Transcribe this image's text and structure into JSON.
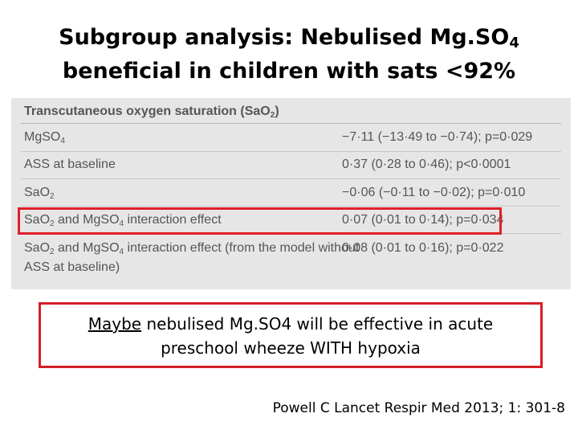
{
  "slide": {
    "title_line1_main": "Subgroup analysis: Nebulised Mg.SO",
    "title_line1_sub": "4",
    "title_line2": "beneficial in children with sats <92%"
  },
  "table": {
    "header_main": "Transcutaneous oxygen saturation (SaO",
    "header_sub": "2",
    "header_end": ")",
    "rows": [
      {
        "label_a": "MgSO",
        "label_a_sub": "4",
        "label_b": "",
        "label_b_sub": "",
        "label_c": "",
        "value": "−7·11 (−13·49 to −0·74); p=0·029"
      },
      {
        "label_a": "ASS at baseline",
        "label_a_sub": "",
        "label_b": "",
        "label_b_sub": "",
        "label_c": "",
        "value": "0·37 (0·28 to 0·46); p<0·0001"
      },
      {
        "label_a": "SaO",
        "label_a_sub": "2",
        "label_b": "",
        "label_b_sub": "",
        "label_c": "",
        "value": "−0·06 (−0·11 to −0·02); p=0·010"
      },
      {
        "label_a": "SaO",
        "label_a_sub": "2",
        "label_b": " and MgSO",
        "label_b_sub": "4",
        "label_c": " interaction effect",
        "value": "0·07 (0·01 to 0·14); p=0·034"
      },
      {
        "label_a": "SaO",
        "label_a_sub": "2",
        "label_b": " and MgSO",
        "label_b_sub": "4",
        "label_c": " interaction effect (from the model without",
        "value": "0·08 (0·01 to 0·16); p=0·022"
      }
    ],
    "row5_line2": "ASS at baseline)"
  },
  "conclusion": {
    "emphasis": "Maybe",
    "line1_rest": " nebulised Mg.SO4 will be effective in acute",
    "line2": "preschool wheeze WITH hypoxia"
  },
  "citation": "Powell C Lancet Respir Med 2013; 1: 301-8",
  "colors": {
    "highlight_border": "#e0202a",
    "table_bg": "#e6e6e6",
    "table_text": "#555555"
  }
}
